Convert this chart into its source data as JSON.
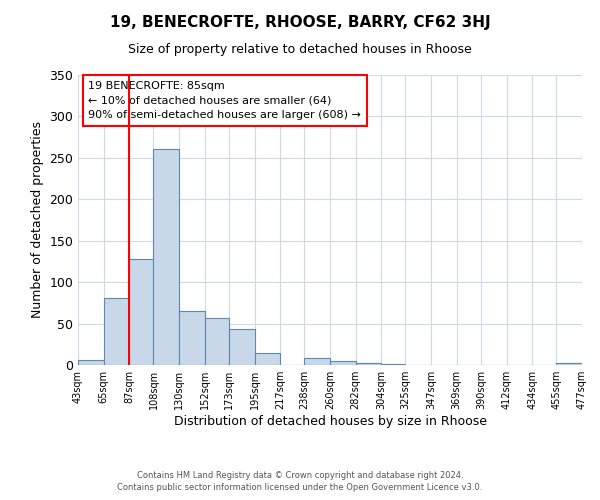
{
  "title": "19, BENECROFTE, RHOOSE, BARRY, CF62 3HJ",
  "subtitle": "Size of property relative to detached houses in Rhoose",
  "xlabel": "Distribution of detached houses by size in Rhoose",
  "ylabel": "Number of detached properties",
  "bar_color": "#c8d8e8",
  "bar_edge_color": "#5a8ab0",
  "background_color": "#ffffff",
  "grid_color": "#d0d8e8",
  "vline_x": 87,
  "vline_color": "red",
  "bin_edges": [
    43,
    65,
    87,
    108,
    130,
    152,
    173,
    195,
    217,
    238,
    260,
    282,
    304,
    325,
    347,
    369,
    390,
    412,
    434,
    455,
    477
  ],
  "bin_counts": [
    6,
    81,
    128,
    261,
    65,
    57,
    44,
    15,
    0,
    8,
    5,
    2,
    1,
    0,
    0,
    0,
    0,
    0,
    0,
    2
  ],
  "xlim_left": 43,
  "xlim_right": 477,
  "ylim_top": 350,
  "yticks": [
    0,
    50,
    100,
    150,
    200,
    250,
    300,
    350
  ],
  "xtick_labels": [
    "43sqm",
    "65sqm",
    "87sqm",
    "108sqm",
    "130sqm",
    "152sqm",
    "173sqm",
    "195sqm",
    "217sqm",
    "238sqm",
    "260sqm",
    "282sqm",
    "304sqm",
    "325sqm",
    "347sqm",
    "369sqm",
    "390sqm",
    "412sqm",
    "434sqm",
    "455sqm",
    "477sqm"
  ],
  "annotation_title": "19 BENECROFTE: 85sqm",
  "annotation_line1": "← 10% of detached houses are smaller (64)",
  "annotation_line2": "90% of semi-detached houses are larger (608) →",
  "annotation_box_color": "#ffffff",
  "annotation_box_edge": "red",
  "footer1": "Contains HM Land Registry data © Crown copyright and database right 2024.",
  "footer2": "Contains public sector information licensed under the Open Government Licence v3.0."
}
